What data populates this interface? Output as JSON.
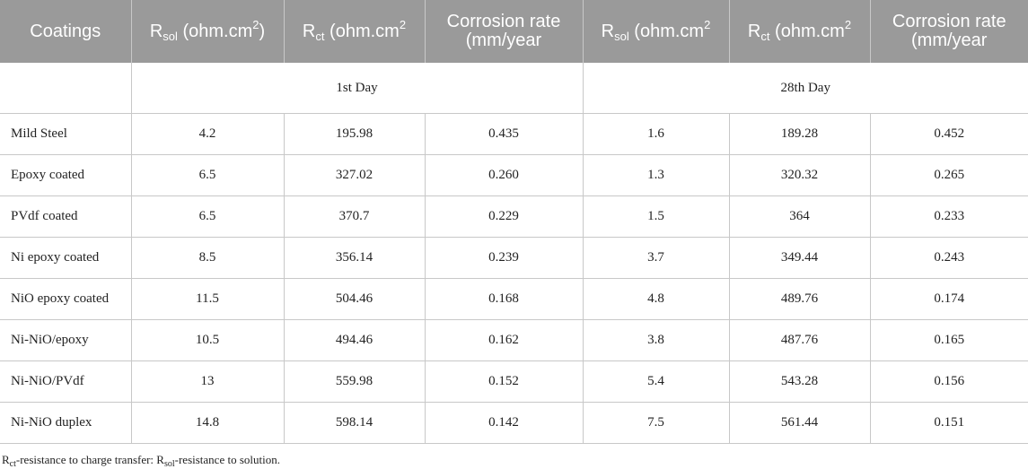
{
  "header": {
    "coatings": "Coatings",
    "r_main": "R",
    "sol_sub": "sol",
    "ct_sub": "ct",
    "unit_sol": " (ohm.cm",
    "unit_sol_close": ")",
    "unit_ct": " (ohm.cm",
    "sup2": "2",
    "corrosion": "Corrosion rate (mm/year"
  },
  "days": {
    "first": "1st Day",
    "second": "28th Day"
  },
  "rows": [
    {
      "name": "Mild Steel",
      "v": [
        "4.2",
        "195.98",
        "0.435",
        "1.6",
        "189.28",
        "0.452"
      ]
    },
    {
      "name": "Epoxy coated",
      "v": [
        "6.5",
        "327.02",
        "0.260",
        "1.3",
        "320.32",
        "0.265"
      ]
    },
    {
      "name": "PVdf coated",
      "v": [
        "6.5",
        "370.7",
        "0.229",
        "1.5",
        "364",
        "0.233"
      ]
    },
    {
      "name": "Ni epoxy coated",
      "v": [
        "8.5",
        "356.14",
        "0.239",
        "3.7",
        "349.44",
        "0.243"
      ]
    },
    {
      "name": "NiO epoxy coated",
      "v": [
        "11.5",
        "504.46",
        "0.168",
        "4.8",
        "489.76",
        "0.174"
      ]
    },
    {
      "name": "Ni-NiO/epoxy",
      "v": [
        "10.5",
        "494.46",
        "0.162",
        "3.8",
        "487.76",
        "0.165"
      ]
    },
    {
      "name": "Ni-NiO/PVdf",
      "v": [
        "13",
        "559.98",
        "0.152",
        "5.4",
        "543.28",
        "0.156"
      ]
    },
    {
      "name": "Ni-NiO duplex",
      "v": [
        "14.8",
        "598.14",
        "0.142",
        "7.5",
        "561.44",
        "0.151"
      ]
    }
  ],
  "footnote": {
    "r1": "R",
    "ct": "ct",
    "text1": "-resistance to charge transfer: R",
    "sol": "sol",
    "text2": "-resistance to solution."
  }
}
